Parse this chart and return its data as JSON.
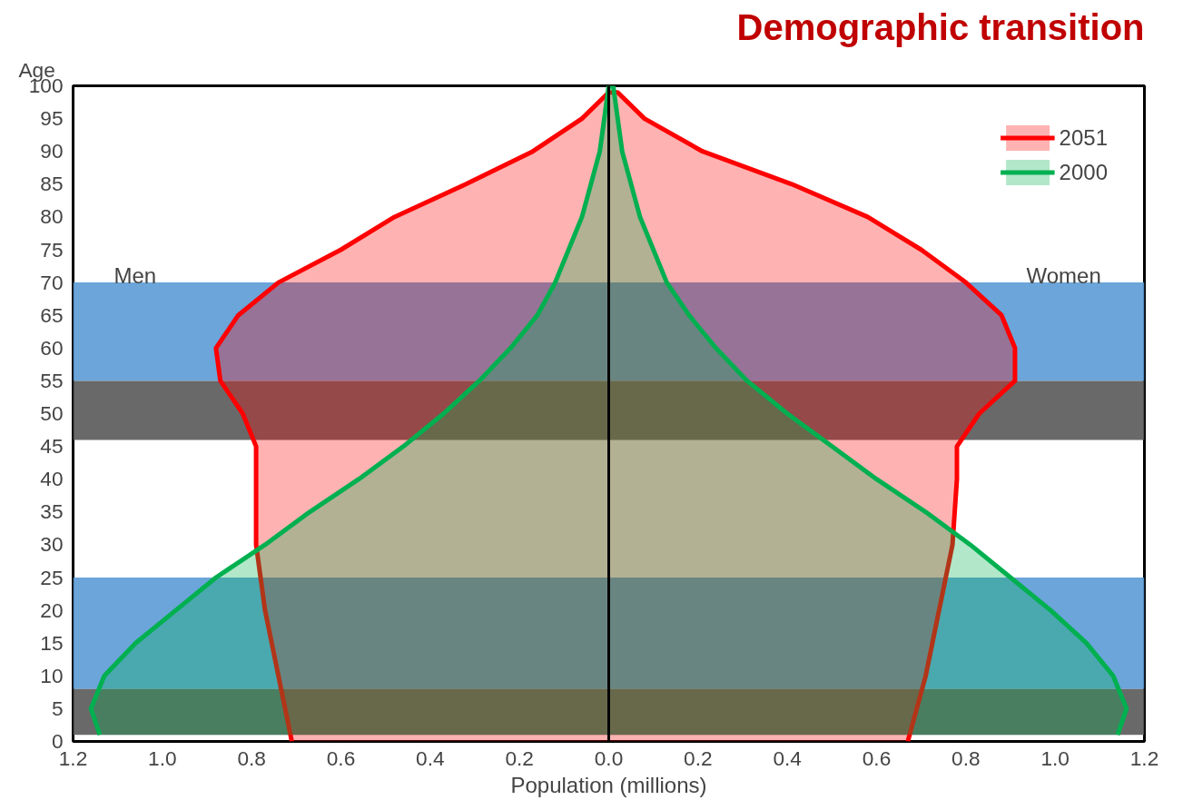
{
  "chart_data": {
    "type": "area",
    "title": "Demographic transition",
    "xlabel": "Population (millions)",
    "ylabel": "Age",
    "annotations": [
      "Men",
      "Women"
    ],
    "xlim": [
      -1.2,
      1.2
    ],
    "xticks": [
      {
        "value": -1.2,
        "label": "1.2"
      },
      {
        "value": -1.0,
        "label": "1.0"
      },
      {
        "value": -0.8,
        "label": "0.8"
      },
      {
        "value": -0.6,
        "label": "0.6"
      },
      {
        "value": -0.4,
        "label": "0.4"
      },
      {
        "value": -0.2,
        "label": "0.2"
      },
      {
        "value": 0,
        "label": "0.0"
      },
      0.2,
      0.4,
      0.6,
      0.8,
      {
        "value": 1.0,
        "label": "1.0"
      },
      1.2
    ],
    "ylim": [
      0,
      100
    ],
    "yticks": [
      0,
      5,
      10,
      15,
      20,
      25,
      30,
      35,
      40,
      45,
      50,
      55,
      60,
      65,
      70,
      75,
      80,
      85,
      90,
      95,
      100
    ],
    "grid": false,
    "legend": "top right",
    "bands": [
      {
        "axis": "y",
        "from": 55,
        "to": 70,
        "color": "#5b9bd5"
      },
      {
        "axis": "y",
        "from": 46,
        "to": 55,
        "color": "#595959"
      },
      {
        "axis": "y",
        "from": 8,
        "to": 25,
        "color": "#5b9bd5"
      },
      {
        "axis": "y",
        "from": 1,
        "to": 8,
        "color": "#595959"
      }
    ],
    "series": [
      {
        "name": "2051",
        "color": "#ff0000",
        "x": [
          -0.71,
          -0.74,
          -0.77,
          -0.79,
          -0.79,
          -0.79,
          -0.82,
          -0.87,
          -0.88,
          -0.83,
          -0.74,
          -0.6,
          -0.48,
          -0.32,
          -0.17,
          -0.06,
          0.0,
          0.02,
          0.08,
          0.21,
          0.41,
          0.58,
          0.7,
          0.8,
          0.88,
          0.91,
          0.91,
          0.83,
          0.78,
          0.78,
          0.77,
          0.74,
          0.71,
          0.67
        ],
        "values": [
          0,
          10,
          20,
          30,
          40,
          45,
          50,
          55,
          60,
          65,
          70,
          75,
          80,
          85,
          90,
          95,
          99,
          99,
          95,
          90,
          85,
          80,
          75,
          70,
          65,
          60,
          55,
          50,
          45,
          40,
          30,
          20,
          10,
          0
        ]
      },
      {
        "name": "2000",
        "color": "#00b050",
        "x": [
          -1.14,
          -1.16,
          -1.13,
          -1.06,
          -0.97,
          -0.88,
          -0.77,
          -0.67,
          -0.56,
          -0.46,
          -0.37,
          -0.29,
          -0.22,
          -0.16,
          -0.12,
          -0.06,
          -0.02,
          0.0,
          0.01,
          0.03,
          0.07,
          0.13,
          0.18,
          0.24,
          0.31,
          0.4,
          0.5,
          0.6,
          0.71,
          0.81,
          0.9,
          0.99,
          1.07,
          1.13,
          1.16,
          1.14
        ],
        "values": [
          1,
          5,
          10,
          15,
          20,
          25,
          30,
          35,
          40,
          45,
          50,
          55,
          60,
          65,
          70,
          80,
          90,
          100,
          100,
          90,
          80,
          70,
          65,
          60,
          55,
          50,
          45,
          40,
          35,
          30,
          25,
          20,
          15,
          10,
          5,
          1
        ]
      }
    ],
    "ref_lines": [
      {
        "axis": "x",
        "value": 0,
        "color": "#000000"
      }
    ]
  }
}
